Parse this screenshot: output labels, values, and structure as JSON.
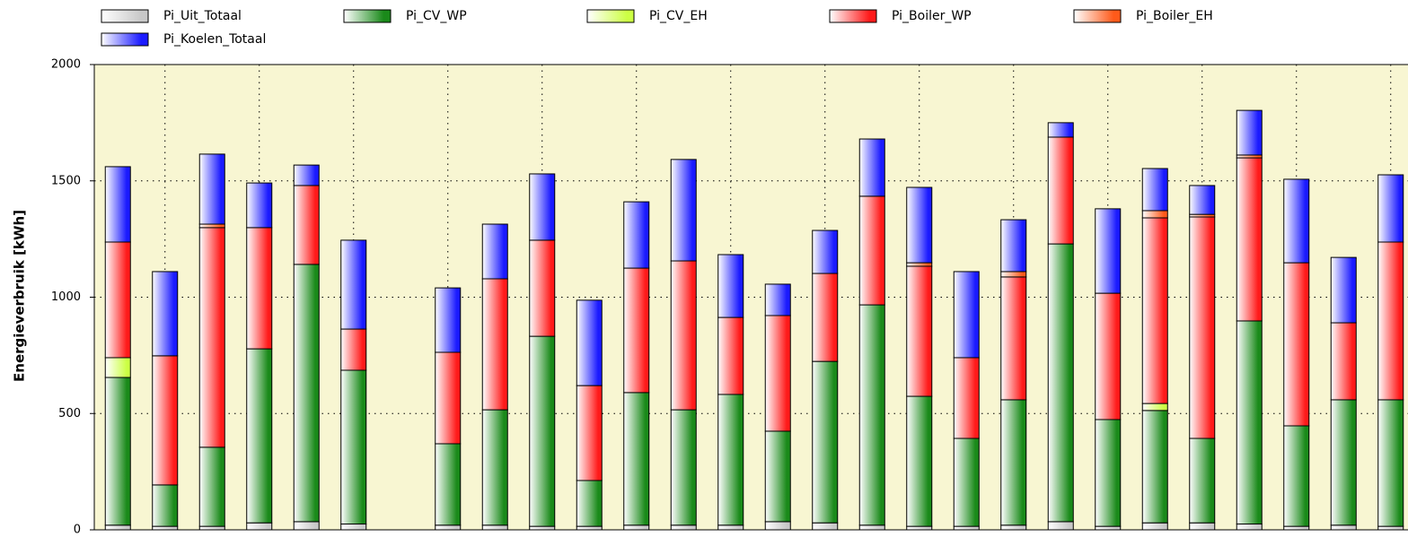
{
  "chart_data": {
    "type": "stacked_bar",
    "y_label": "Energieverbruik [kWh]",
    "categories": [
      null,
      null,
      null,
      null,
      null,
      null,
      null,
      null,
      null,
      null,
      null,
      null,
      null,
      null,
      null,
      null,
      null,
      null,
      null,
      null,
      null,
      null,
      null,
      null,
      null,
      null,
      null,
      null
    ],
    "ylim": [
      0,
      2000
    ],
    "yticks": [
      0,
      500,
      1000,
      1500,
      2000
    ],
    "grid": true,
    "series": [
      {
        "name": "Pi_Uit_Totaal",
        "color": "#c8c8c8",
        "values": [
          20,
          15,
          15,
          30,
          35,
          25,
          null,
          20,
          20,
          15,
          15,
          20,
          20,
          20,
          35,
          30,
          20,
          15,
          15,
          20,
          35,
          15,
          30,
          30,
          25,
          15,
          20,
          15
        ]
      },
      {
        "name": "Pi_CV_WP",
        "color": "#1a8a1a",
        "values": [
          635,
          178,
          340,
          748,
          1106,
          661,
          null,
          350,
          496,
          817,
          197,
          570,
          496,
          562,
          389,
          694,
          947,
          559,
          378,
          539,
          1194,
          459,
          483,
          363,
          873,
          432,
          539,
          544
        ]
      },
      {
        "name": "Pi_CV_EH",
        "color": "#ccff44",
        "values": [
          85,
          0,
          0,
          0,
          0,
          0,
          null,
          0,
          0,
          0,
          0,
          0,
          0,
          0,
          0,
          0,
          0,
          0,
          0,
          0,
          0,
          0,
          30,
          0,
          0,
          0,
          0,
          0
        ]
      },
      {
        "name": "Pi_Boiler_WP",
        "color": "#ff1a1a",
        "values": [
          497,
          555,
          944,
          521,
          339,
          177,
          null,
          393,
          563,
          413,
          408,
          535,
          640,
          331,
          497,
          378,
          467,
          559,
          347,
          528,
          459,
          543,
          798,
          952,
          701,
          701,
          331,
          678
        ]
      },
      {
        "name": "Pi_Boiler_EH",
        "color": "#ff5a1a",
        "values": [
          0,
          0,
          15,
          0,
          0,
          0,
          null,
          0,
          0,
          0,
          0,
          0,
          0,
          0,
          0,
          0,
          0,
          15,
          0,
          23,
          0,
          0,
          31,
          11,
          12,
          0,
          0,
          0
        ]
      },
      {
        "name": "Pi_Koelen_Totaal",
        "color": "#1a1aff",
        "values": [
          324,
          362,
          301,
          192,
          88,
          382,
          null,
          277,
          235,
          285,
          367,
          285,
          436,
          270,
          135,
          185,
          246,
          324,
          370,
          223,
          62,
          363,
          181,
          124,
          192,
          359,
          281,
          289
        ]
      }
    ]
  }
}
